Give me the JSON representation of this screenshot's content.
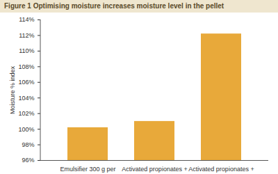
{
  "chart_data": {
    "type": "bar",
    "title": "Figure 1 Optimising moisture increases moisture level in the pellet",
    "ylabel": "Moisture % index",
    "categories": [
      "Emulsifier 300 g per",
      "Activated propionates +",
      "Activated propionates +"
    ],
    "values": [
      100.2,
      101.0,
      112.2
    ],
    "color": "#e8a93a",
    "ylim": [
      96,
      114
    ],
    "yticks": [
      {
        "value": 96,
        "label": "96%"
      },
      {
        "value": 98,
        "label": "98%"
      },
      {
        "value": 100,
        "label": "100%"
      },
      {
        "value": 102,
        "label": "102%"
      },
      {
        "value": 104,
        "label": "104%"
      },
      {
        "value": 106,
        "label": "106%"
      },
      {
        "value": 108,
        "label": "108%"
      },
      {
        "value": 110,
        "label": "110%"
      },
      {
        "value": 112,
        "label": "112%"
      },
      {
        "value": 114,
        "label": "114%"
      }
    ],
    "grid": false
  }
}
